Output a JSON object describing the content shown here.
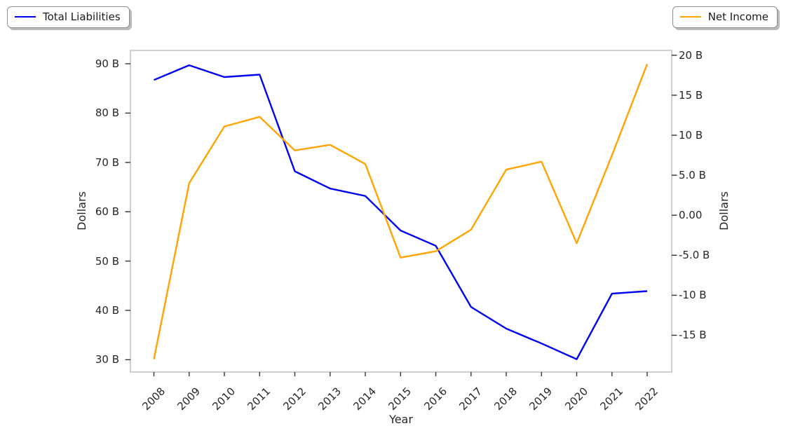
{
  "chart_data": {
    "type": "line",
    "title": "",
    "xlabel": "Year",
    "x": [
      2008,
      2009,
      2010,
      2011,
      2012,
      2013,
      2014,
      2015,
      2016,
      2017,
      2018,
      2019,
      2020,
      2021,
      2022
    ],
    "x_tick_labels": [
      "2008",
      "2009",
      "2010",
      "2011",
      "2012",
      "2013",
      "2014",
      "2015",
      "2016",
      "2017",
      "2018",
      "2019",
      "2020",
      "2021",
      "2022"
    ],
    "unit": "billions of dollars",
    "series": [
      {
        "name": "Total Liabilities",
        "axis": "left",
        "color": "#0000F5",
        "values": [
          86.7,
          89.7,
          87.3,
          87.8,
          68.2,
          64.7,
          63.2,
          56.2,
          53.1,
          40.7,
          36.3,
          33.3,
          30.1,
          43.4,
          43.9
        ]
      },
      {
        "name": "Net Income",
        "axis": "right",
        "color": "#FFA400",
        "values": [
          -18.0,
          4.0,
          11.1,
          12.3,
          8.1,
          8.8,
          6.4,
          -5.3,
          -4.5,
          -1.8,
          5.7,
          6.7,
          -3.5,
          7.5,
          18.9
        ]
      }
    ],
    "left_axis": {
      "label": "Dollars",
      "ticks": [
        90,
        80,
        70,
        60,
        50,
        40,
        30
      ],
      "tick_labels": [
        "90 B",
        "80 B",
        "70 B",
        "60 B",
        "50 B",
        "40 B",
        "30 B"
      ],
      "range": [
        27.5,
        92.7
      ]
    },
    "right_axis": {
      "label": "Dollars",
      "ticks": [
        20,
        15,
        10,
        5,
        0,
        -5,
        -10,
        -15
      ],
      "tick_labels": [
        "20 B",
        "15 B",
        "10 B",
        "5.0 B",
        "0.00",
        "-5.0 B",
        "-10 B",
        "-15 B"
      ],
      "range": [
        -19.6,
        20.6
      ]
    },
    "grid": false,
    "plot_border_color": "#cfcfcf",
    "background_color": "#ffffff",
    "legend": [
      {
        "series": "Total Liabilities",
        "position": "top-left"
      },
      {
        "series": "Net Income",
        "position": "top-right"
      }
    ]
  }
}
